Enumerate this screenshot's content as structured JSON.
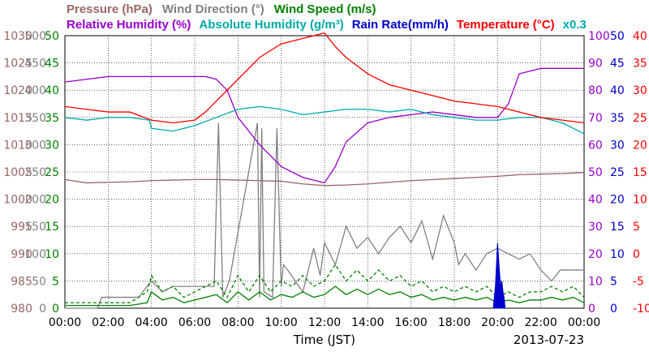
{
  "chart_data": {
    "type": "line",
    "xlabel": "Time (JST)",
    "date": "2013-07-23",
    "x_ticks": [
      "00:00",
      "02:00",
      "04:00",
      "06:00",
      "08:00",
      "10:00",
      "12:00",
      "14:00",
      "16:00",
      "18:00",
      "20:00",
      "22:00",
      "00:00"
    ],
    "x_range_hours": [
      0,
      24
    ],
    "legend_row1": [
      {
        "label": "Pressure (hPa)",
        "color": "#996666"
      },
      {
        "label": "Wind Direction (°)",
        "color": "#808080"
      },
      {
        "label": "Wind Speed (m/s)",
        "color": "#008000"
      }
    ],
    "legend_row2": [
      {
        "label": "Relative Humidity (%)",
        "color": "#9900cc"
      },
      {
        "label": "Absolute Humidity (g/m³)",
        "color": "#00aaaa"
      },
      {
        "label": "Rain Rate(mm/h)",
        "color": "#0000cc"
      },
      {
        "label": "Temperature (°C)",
        "color": "#ff0000"
      },
      {
        "label": "x0.3",
        "color": "#00aaaa"
      }
    ],
    "axes": {
      "pressure": {
        "color": "#996666",
        "ticks": [
          1030,
          1025,
          1020,
          1015,
          1010,
          1005,
          1000,
          995,
          990,
          985,
          980
        ],
        "range": [
          980,
          1030
        ]
      },
      "wind_direction": {
        "color": "#808080",
        "ticks": [
          500,
          450,
          400,
          350,
          300,
          250,
          200,
          150,
          100,
          50,
          0
        ],
        "range": [
          0,
          500
        ]
      },
      "wind_speed": {
        "color": "#008000",
        "ticks": [
          50,
          45,
          40,
          35,
          30,
          25,
          20,
          15,
          10,
          5,
          0
        ],
        "range": [
          0,
          50
        ]
      },
      "humidity": {
        "color": "#9900cc",
        "ticks": [
          100,
          90,
          80,
          70,
          60,
          50,
          40,
          30,
          20,
          10,
          0
        ],
        "range": [
          0,
          100
        ]
      },
      "rain_rate": {
        "color": "#0000cc",
        "ticks": [
          50,
          45,
          40,
          35,
          30,
          25,
          20,
          15,
          10,
          5,
          0
        ],
        "range": [
          0,
          50
        ]
      },
      "temperature": {
        "color": "#ff0000",
        "ticks": [
          40,
          35,
          30,
          25,
          20,
          15,
          10,
          5,
          0,
          -5,
          -10
        ],
        "range": [
          -10,
          40
        ]
      }
    },
    "series": [
      {
        "name": "Pressure (hPa)",
        "color": "#996666",
        "axis": "pressure",
        "x": [
          0,
          1,
          2,
          3,
          4,
          5,
          6,
          7,
          8,
          9,
          10,
          11,
          12,
          13,
          14,
          15,
          16,
          17,
          18,
          19,
          20,
          21,
          22,
          23,
          24
        ],
        "y": [
          1003.6,
          1003.0,
          1003.1,
          1003.2,
          1003.4,
          1003.5,
          1003.6,
          1003.6,
          1003.5,
          1003.4,
          1003.3,
          1002.8,
          1002.5,
          1002.6,
          1002.8,
          1003.1,
          1003.4,
          1003.6,
          1003.8,
          1004.0,
          1004.2,
          1004.5,
          1004.6,
          1004.7,
          1004.9
        ]
      },
      {
        "name": "Wind Direction (°)",
        "color": "#808080",
        "axis": "wind_direction",
        "x": [
          0,
          1.5,
          1.7,
          3.4,
          4.0,
          4.5,
          5.0,
          6.9,
          7.1,
          7.3,
          7.4,
          7.6,
          8.9,
          9.0,
          9.1,
          9.2,
          9.6,
          9.8,
          10.0,
          10.1,
          10.3,
          11.0,
          11.5,
          11.8,
          12.0,
          12.5,
          13.0,
          13.5,
          14.0,
          14.5,
          15.0,
          15.5,
          16.0,
          16.5,
          17.0,
          17.5,
          18.0,
          18.2,
          18.5,
          19.0,
          19.5,
          20.0,
          20.5,
          21.0,
          21.5,
          22.0,
          22.5,
          22.9,
          23.0,
          24.0
        ],
        "y": [
          0,
          0,
          20,
          20,
          50,
          30,
          40,
          40,
          340,
          20,
          30,
          50,
          340,
          20,
          330,
          30,
          20,
          330,
          40,
          80,
          70,
          30,
          110,
          60,
          120,
          80,
          150,
          110,
          130,
          100,
          130,
          150,
          120,
          160,
          90,
          170,
          120,
          80,
          100,
          70,
          100,
          110,
          100,
          90,
          100,
          70,
          50,
          70,
          70,
          70
        ]
      },
      {
        "name": "Wind Speed (m/s)",
        "color": "#008000",
        "axis": "wind_speed",
        "dashed": true,
        "x": [
          0,
          1,
          2,
          3,
          3.8,
          4.0,
          4.5,
          5,
          5.5,
          6,
          6.5,
          7,
          7.5,
          8,
          8.5,
          9,
          9.5,
          10,
          10.5,
          11,
          11.5,
          12,
          12.5,
          13,
          13.5,
          14,
          14.5,
          15,
          15.5,
          16,
          16.5,
          17,
          17.5,
          18,
          18.5,
          19,
          19.5,
          20,
          20.5,
          21,
          21.5,
          22,
          22.5,
          23,
          23.5,
          24
        ],
        "y": [
          1,
          1,
          1,
          1,
          3,
          6,
          3,
          4,
          2,
          3,
          4,
          5,
          2,
          6,
          3,
          6,
          3,
          5,
          4,
          6,
          4,
          5,
          8,
          5,
          7,
          5,
          7,
          5,
          6,
          4,
          5,
          3,
          4,
          3,
          4,
          3,
          4,
          2,
          3,
          2,
          3,
          3,
          4,
          3,
          4,
          2
        ]
      },
      {
        "name": "Wind Speed (m/s)",
        "color": "#008000",
        "axis": "wind_speed",
        "dashed": false,
        "x": [
          0,
          1,
          2,
          3,
          3.8,
          4.0,
          4.5,
          5,
          5.5,
          6,
          6.5,
          7,
          7.5,
          8,
          8.5,
          9,
          9.5,
          10,
          10.5,
          11,
          11.5,
          12,
          12.5,
          13,
          13.5,
          14,
          14.5,
          15,
          15.5,
          16,
          16.5,
          17,
          17.5,
          18,
          18.5,
          19,
          19.5,
          20,
          20.5,
          21,
          21.5,
          22,
          22.5,
          23,
          23.5,
          24
        ],
        "y": [
          0.5,
          0.5,
          0.5,
          0.5,
          1,
          3,
          1.5,
          2,
          1,
          1.5,
          2,
          2.5,
          1,
          3,
          1.5,
          3,
          1.5,
          2.5,
          2,
          3,
          2,
          2.5,
          4,
          2.5,
          3.5,
          2.5,
          3.5,
          2.5,
          3,
          2,
          2.5,
          1.5,
          2,
          1.5,
          2,
          1.5,
          2,
          1,
          1.5,
          1,
          1.5,
          1.5,
          2,
          1.5,
          2,
          1
        ]
      },
      {
        "name": "Relative Humidity (%)",
        "color": "#9900cc",
        "axis": "humidity",
        "x": [
          0,
          1,
          2,
          3,
          4,
          5,
          6,
          6.5,
          7,
          7.5,
          8,
          9,
          10,
          11,
          11.5,
          12,
          12.5,
          13,
          14,
          15,
          16,
          17,
          18,
          19,
          20,
          20.5,
          21,
          22,
          23,
          24
        ],
        "y": [
          83,
          84,
          85,
          85,
          85,
          85,
          85,
          85,
          84,
          80,
          70,
          60,
          52,
          48,
          47,
          46,
          52,
          61,
          68,
          70,
          71,
          72,
          71,
          70,
          70,
          75,
          86,
          88,
          88,
          88
        ]
      },
      {
        "name": "Absolute Humidity (g/m³)",
        "color": "#00aaaa",
        "axis": "humidity",
        "x": [
          0,
          1,
          2,
          3,
          3.9,
          4.0,
          5,
          6,
          7,
          8,
          9,
          10,
          11,
          12,
          13,
          14,
          15,
          16,
          17,
          18,
          19,
          20,
          21,
          22,
          23,
          24
        ],
        "y": [
          70,
          69,
          70,
          70,
          69,
          66,
          65,
          67,
          70,
          73,
          74,
          73,
          71,
          72,
          73,
          73,
          72,
          73,
          71,
          70,
          69,
          69,
          70,
          70,
          68,
          64
        ]
      },
      {
        "name": "Temperature (°C)",
        "color": "#ff0000",
        "axis": "temperature",
        "x": [
          0,
          1,
          2,
          3,
          4,
          5,
          6,
          6.5,
          7,
          8,
          9,
          10,
          11,
          12,
          12.5,
          13,
          14,
          15,
          16,
          17,
          18,
          19,
          20,
          21,
          22,
          23,
          24
        ],
        "y": [
          27,
          26.5,
          26,
          26,
          24.5,
          24,
          24.5,
          26,
          28,
          32,
          36,
          38.5,
          39.5,
          40.5,
          38,
          36,
          33,
          31,
          30,
          29,
          28,
          27.5,
          27,
          26,
          25,
          24.5,
          24
        ]
      },
      {
        "name": "Rain Rate(mm/h)",
        "color": "#0000cc",
        "axis": "rain_rate",
        "fill": true,
        "x": [
          19.8,
          19.85,
          19.9,
          19.95,
          20.0,
          20.05,
          20.1,
          20.15,
          20.2,
          20.25,
          20.3,
          20.35
        ],
        "y": [
          0,
          2,
          4,
          8,
          12,
          9,
          6,
          4,
          5,
          3,
          2,
          0
        ]
      }
    ]
  }
}
